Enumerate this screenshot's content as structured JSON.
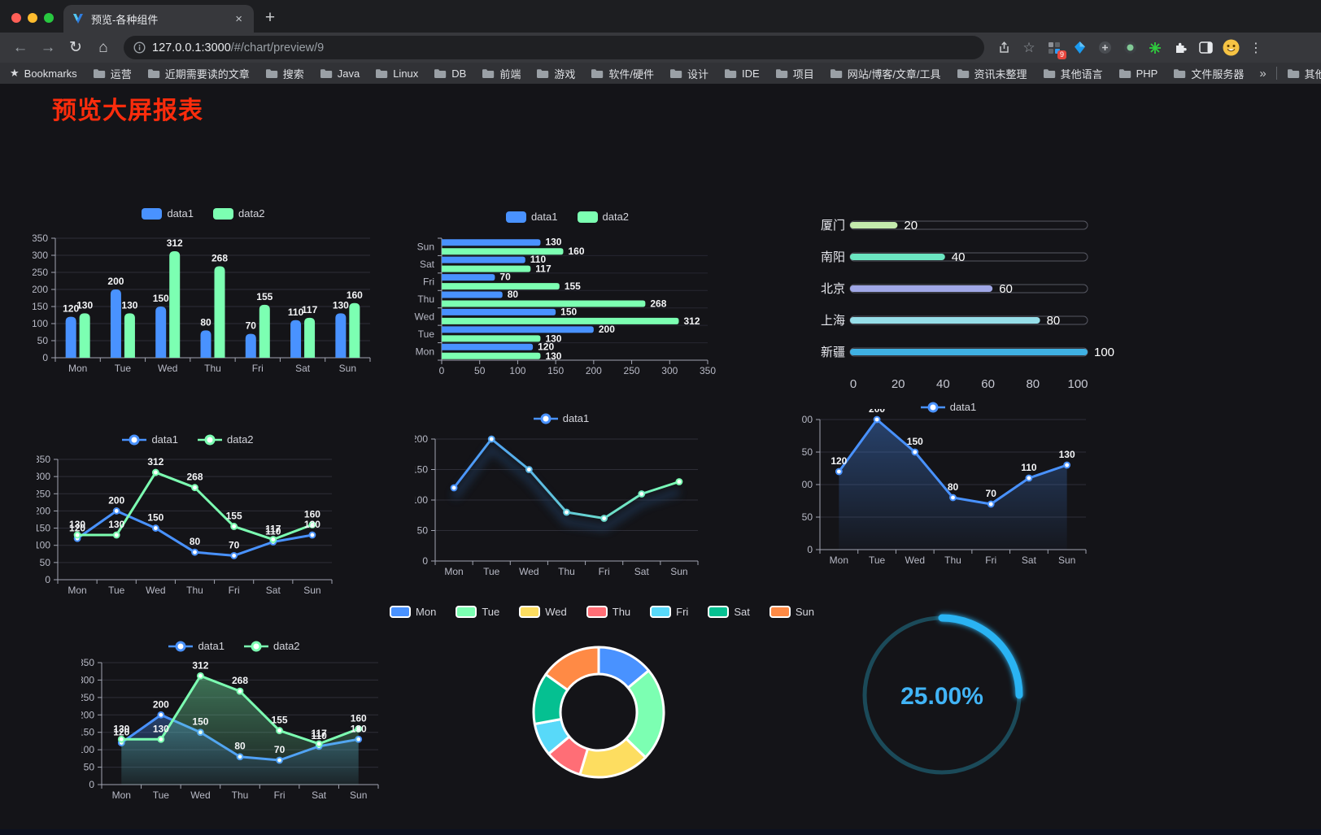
{
  "browser": {
    "tab_title": "预览-各种组件",
    "close_glyph": "×",
    "new_tab_glyph": "+",
    "back_glyph": "←",
    "forward_glyph": "→",
    "reload_glyph": "↻",
    "home_glyph": "⌂",
    "url_host": "127.0.0.1:3000",
    "url_path": "/#/chart/preview/9",
    "star_glyph": "☆",
    "extension_badge": "9",
    "kebab_glyph": "⋮",
    "bookmarks_label": "Bookmarks",
    "bookmarks_star_glyph": "★",
    "bookmark_folders": [
      "运营",
      "近期需要读的文章",
      "搜索",
      "Java",
      "Linux",
      "DB",
      "前端",
      "游戏",
      "软件/硬件",
      "设计",
      "IDE",
      "项目",
      "网站/博客/文章/工具",
      "资讯未整理",
      "其他语言",
      "PHP",
      "文件服务器"
    ],
    "overflow_chevron": "»",
    "other_bookmarks_label": "其他书签"
  },
  "page": {
    "title": "预览大屏报表",
    "title_color": "#fc2c0c"
  },
  "theme": {
    "grid": "#2e2e37",
    "axis": "#a2a5b2",
    "tick_label": "#b8bac6",
    "value_label": "#f4f5f7",
    "legend_text": "#d4d5dc",
    "background": "#141418"
  },
  "chart_data": [
    {
      "id": "bar-vertical",
      "type": "bar",
      "categories": [
        "Mon",
        "Tue",
        "Wed",
        "Thu",
        "Fri",
        "Sat",
        "Sun"
      ],
      "series": [
        {
          "name": "data1",
          "color": "#4992ff",
          "values": [
            120,
            200,
            150,
            80,
            70,
            110,
            130
          ]
        },
        {
          "name": "data2",
          "color": "#7cffb2",
          "values": [
            130,
            130,
            312,
            268,
            155,
            117,
            160
          ]
        }
      ],
      "ylim": [
        0,
        350
      ],
      "ytick": 50,
      "value_labels": true,
      "legend_position": "top",
      "grid": true
    },
    {
      "id": "bar-horizontal",
      "type": "bar",
      "orientation": "horizontal",
      "categories": [
        "Mon",
        "Tue",
        "Wed",
        "Thu",
        "Fri",
        "Sat",
        "Sun"
      ],
      "display_note": "categories shown top-to-bottom as Sun..Mon, data1 bar above data2 in each group",
      "series": [
        {
          "name": "data1",
          "color": "#4992ff",
          "values": [
            120,
            200,
            150,
            80,
            70,
            110,
            130
          ]
        },
        {
          "name": "data2",
          "color": "#7cffb2",
          "values": [
            130,
            130,
            312,
            268,
            155,
            117,
            160
          ]
        }
      ],
      "xlim": [
        0,
        350
      ],
      "xtick": 50,
      "value_labels": true,
      "legend_position": "top"
    },
    {
      "id": "progress-bars",
      "type": "bar",
      "orientation": "horizontal-progress",
      "items": [
        {
          "label": "厦门",
          "value": 20,
          "color": "#c4ebad"
        },
        {
          "label": "南阳",
          "value": 40,
          "color": "#6be6c1"
        },
        {
          "label": "北京",
          "value": 60,
          "color": "#a0a7e6"
        },
        {
          "label": "上海",
          "value": 80,
          "color": "#96dee8"
        },
        {
          "label": "新疆",
          "value": 100,
          "color": "#3fb1e3"
        }
      ],
      "xlim": [
        0,
        100
      ],
      "axis_ticks": [
        0,
        20,
        40,
        60,
        80,
        100
      ],
      "value_labels": true
    },
    {
      "id": "line-two-series",
      "type": "line",
      "categories": [
        "Mon",
        "Tue",
        "Wed",
        "Thu",
        "Fri",
        "Sat",
        "Sun"
      ],
      "series": [
        {
          "name": "data1",
          "color": "#4992ff",
          "values": [
            120,
            200,
            150,
            80,
            70,
            110,
            130
          ]
        },
        {
          "name": "data2",
          "color": "#7cffb2",
          "values": [
            130,
            130,
            312,
            268,
            155,
            117,
            160
          ]
        }
      ],
      "ylim": [
        0,
        350
      ],
      "ytick": 50,
      "value_labels": true,
      "markers": true,
      "legend_position": "top"
    },
    {
      "id": "line-gradient",
      "type": "line",
      "categories": [
        "Mon",
        "Tue",
        "Wed",
        "Thu",
        "Fri",
        "Sat",
        "Sun"
      ],
      "series": [
        {
          "name": "data1",
          "color_gradient": [
            "#4992ff",
            "#7cffb2"
          ],
          "values": [
            120,
            200,
            150,
            80,
            70,
            110,
            130
          ]
        }
      ],
      "ylim": [
        0,
        200
      ],
      "ytick": 50,
      "value_labels": false,
      "markers": true,
      "shadow": true,
      "legend_position": "top"
    },
    {
      "id": "line-area",
      "type": "area",
      "categories": [
        "Mon",
        "Tue",
        "Wed",
        "Thu",
        "Fri",
        "Sat",
        "Sun"
      ],
      "series": [
        {
          "name": "data1",
          "color": "#4992ff",
          "values": [
            120,
            200,
            150,
            80,
            70,
            110,
            130
          ]
        }
      ],
      "ylim": [
        0,
        200
      ],
      "ytick": 50,
      "value_labels": true,
      "markers": true,
      "legend_position": "top"
    },
    {
      "id": "line-area-two",
      "type": "area",
      "categories": [
        "Mon",
        "Tue",
        "Wed",
        "Thu",
        "Fri",
        "Sat",
        "Sun"
      ],
      "series": [
        {
          "name": "data1",
          "color": "#4992ff",
          "values": [
            120,
            200,
            150,
            80,
            70,
            110,
            130
          ]
        },
        {
          "name": "data2",
          "color": "#7cffb2",
          "values": [
            130,
            130,
            312,
            268,
            155,
            117,
            160
          ]
        }
      ],
      "ylim": [
        0,
        350
      ],
      "ytick": 50,
      "value_labels": true,
      "markers": true,
      "legend_position": "top"
    },
    {
      "id": "donut",
      "type": "pie",
      "inner_radius_ratio": 0.59,
      "items": [
        {
          "label": "Mon",
          "value": 120,
          "color": "#4992ff"
        },
        {
          "label": "Tue",
          "value": 200,
          "color": "#7cffb2"
        },
        {
          "label": "Wed",
          "value": 150,
          "color": "#fddd60"
        },
        {
          "label": "Thu",
          "value": 80,
          "color": "#ff6e76"
        },
        {
          "label": "Fri",
          "value": 70,
          "color": "#58d9f9"
        },
        {
          "label": "Sat",
          "value": 110,
          "color": "#05c091"
        },
        {
          "label": "Sun",
          "value": 130,
          "color": "#ff8a45"
        }
      ],
      "legend_position": "top"
    },
    {
      "id": "gauge",
      "type": "gauge",
      "value": 25,
      "max": 100,
      "display": "25.00%",
      "color": "#2bb3f3",
      "track_color": "#1b4a59",
      "text_color": "#41b4f6"
    }
  ]
}
